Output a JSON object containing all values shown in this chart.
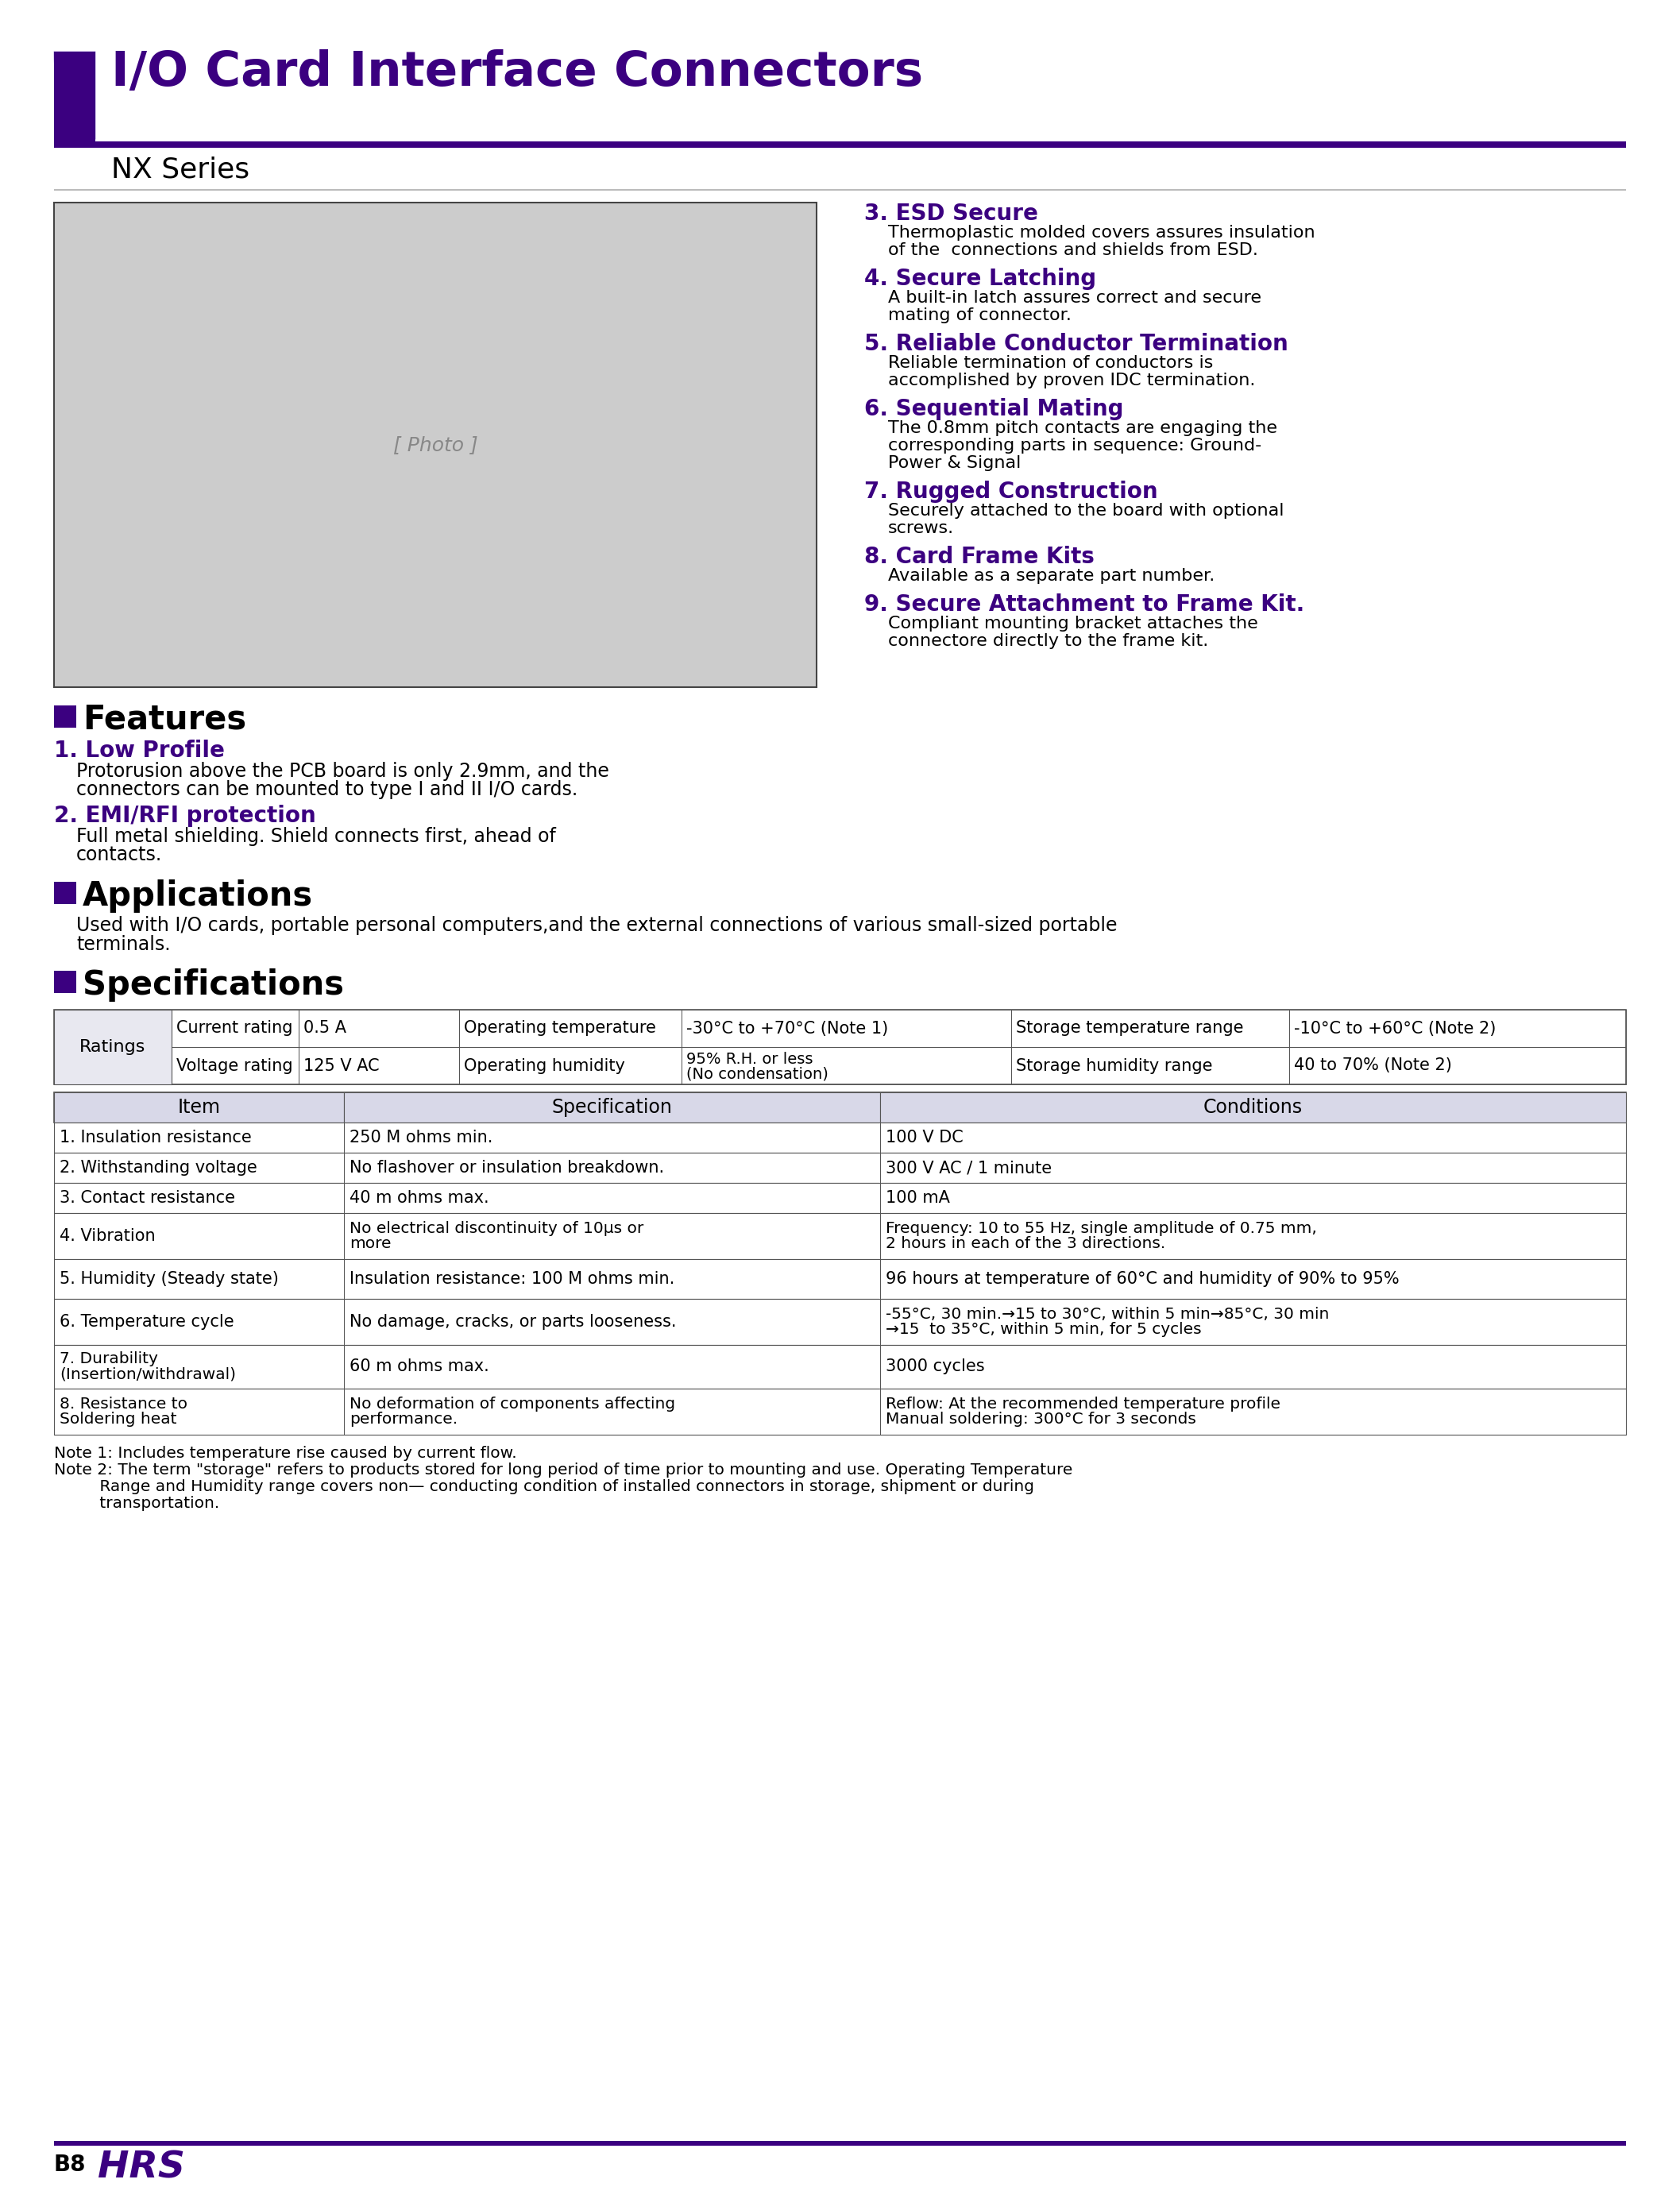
{
  "title": "I/O Card Interface Connectors",
  "subtitle": "NX Series",
  "purple": "#3B0080",
  "light_purple": "#C8B8E8",
  "black": "#000000",
  "table_header_bg": "#D8D8E8",
  "ratings_bg": "#E8E8F0",
  "features": [
    {
      "num": "1.",
      "head": "Low Profile",
      "body": "Protorusion above the PCB board is only 2.9mm, and the\nconnectors can be mounted to type I and II I/O cards."
    },
    {
      "num": "2.",
      "head": "EMI/RFI protection",
      "body": "Full metal shielding. Shield connects first, ahead of\ncontacts."
    }
  ],
  "features_right": [
    {
      "num": "3.",
      "head": "ESD Secure",
      "body": "Thermoplastic molded covers assures insulation\nof the  connections and shields from ESD."
    },
    {
      "num": "4.",
      "head": "Secure Latching",
      "body": "A built-in latch assures correct and secure\nmating of connector."
    },
    {
      "num": "5.",
      "head": "Reliable Conductor Termination",
      "body": "Reliable termination of conductors is\naccomplished by proven IDC termination."
    },
    {
      "num": "6.",
      "head": "Sequential Mating",
      "body": "The 0.8mm pitch contacts are engaging the\ncorresponding parts in sequence: Ground-\nPower & Signal"
    },
    {
      "num": "7.",
      "head": "Rugged Construction",
      "body": "Securely attached to the board with optional\nscrews."
    },
    {
      "num": "8.",
      "head": "Card Frame Kits",
      "body": "Available as a separate part number."
    },
    {
      "num": "9.",
      "head": "Secure Attachment to Frame Kit.",
      "body": "Compliant mounting bracket attaches the\nconnectore directly to the frame kit."
    }
  ],
  "applications_body": "Used with I/O cards, portable personal computers,and the external connections of various small-sized portable\nterminals.",
  "ratings_rows": [
    [
      "Current rating",
      "0.5 A",
      "Operating temperature",
      "-30°C to +70°C (Note 1)",
      "Storage temperature range",
      "-10°C to +60°C (Note 2)"
    ],
    [
      "Voltage rating",
      "125 V AC",
      "Operating humidity",
      "95% R.H. or less\n(No condensation)",
      "Storage humidity range",
      "40 to 70% (Note 2)"
    ]
  ],
  "specs_headers": [
    "Item",
    "Specification",
    "Conditions"
  ],
  "specs_rows": [
    [
      "1. Insulation resistance",
      "250 M ohms min.",
      "100 V DC"
    ],
    [
      "2. Withstanding voltage",
      "No flashover or insulation breakdown.",
      "300 V AC / 1 minute"
    ],
    [
      "3. Contact resistance",
      "40 m ohms max.",
      "100 mA"
    ],
    [
      "4. Vibration",
      "No electrical discontinuity of 10μs or\nmore",
      "Frequency: 10 to 55 Hz, single amplitude of 0.75 mm,\n2 hours in each of the 3 directions."
    ],
    [
      "5. Humidity (Steady state)",
      "Insulation resistance: 100 M ohms min.",
      "96 hours at temperature of 60°C and humidity of 90% to 95%"
    ],
    [
      "6. Temperature cycle",
      "No damage, cracks, or parts looseness.",
      "-55°C, 30 min.→15 to 30°C, within 5 min→85°C, 30 min\n→15  to 35°C, within 5 min, for 5 cycles"
    ],
    [
      "7. Durability\n(Insertion/withdrawal)",
      "60 m ohms max.",
      "3000 cycles"
    ],
    [
      "8. Resistance to\nSoldering heat",
      "No deformation of components affecting\nperformance.",
      "Reflow: At the recommended temperature profile\nManual soldering: 300°C for 3 seconds"
    ]
  ],
  "notes": [
    "Note 1: Includes temperature rise caused by current flow.",
    "Note 2: The term \"storage\" refers to products stored for long period of time prior to mounting and use. Operating Temperature\n         Range and Humidity range covers non— conducting condition of installed connectors in storage, shipment or during\n         transportation."
  ],
  "footer_page": "B8"
}
